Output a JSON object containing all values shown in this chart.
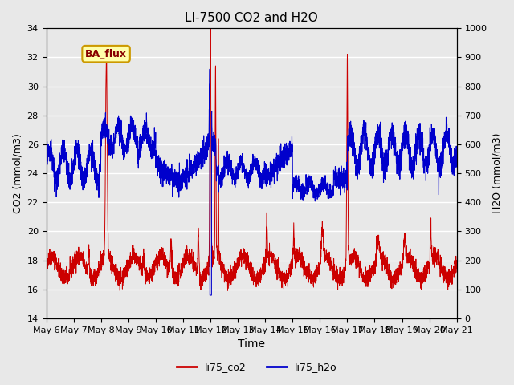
{
  "title": "LI-7500 CO2 and H2O",
  "xlabel": "Time",
  "ylabel_left": "CO2 (mmol/m3)",
  "ylabel_right": "H2O (mmol/m3)",
  "ylim_left": [
    14,
    34
  ],
  "ylim_right": [
    0,
    1000
  ],
  "yticks_left": [
    14,
    16,
    18,
    20,
    22,
    24,
    26,
    28,
    30,
    32,
    34
  ],
  "yticks_right": [
    0,
    100,
    200,
    300,
    400,
    500,
    600,
    700,
    800,
    900,
    1000
  ],
  "xtick_labels": [
    "May 6",
    "May 7",
    "May 8",
    "May 9",
    "May 10",
    "May 11",
    "May 12",
    "May 13",
    "May 14",
    "May 15",
    "May 16",
    "May 17",
    "May 18",
    "May 19",
    "May 20",
    "May 21"
  ],
  "co2_color": "#cc0000",
  "h2o_color": "#0000cc",
  "background_color": "#e8e8e8",
  "grid_color": "white",
  "badge_text": "BA_flux",
  "badge_facecolor": "#ffffaa",
  "badge_edgecolor": "#cc9900",
  "badge_textcolor": "#880000",
  "legend_co2": "li75_co2",
  "legend_h2o": "li75_h2o",
  "n_points": 3600,
  "n_days": 15
}
